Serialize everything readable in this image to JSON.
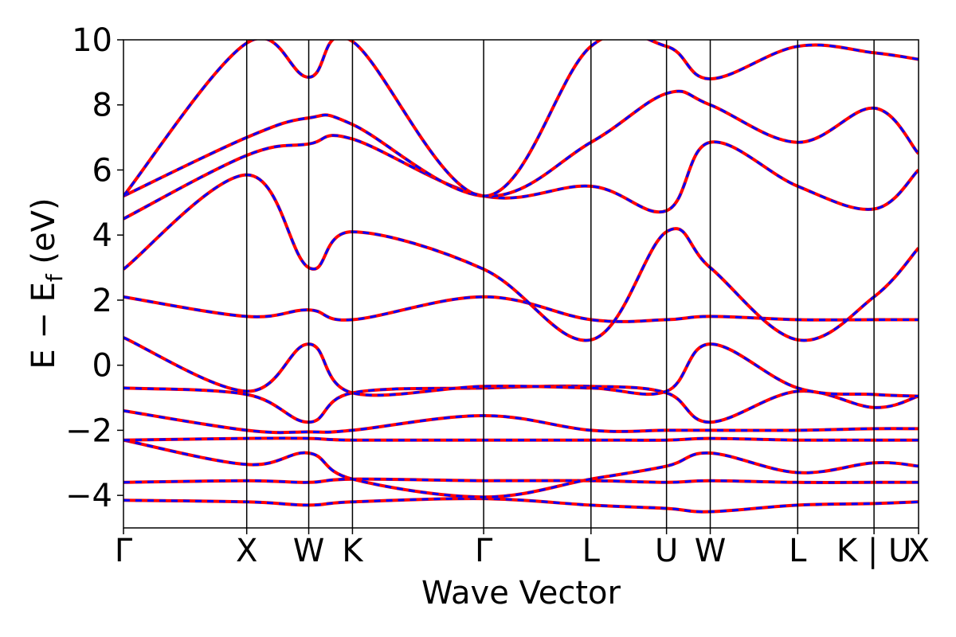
{
  "chart_data": {
    "type": "line",
    "title": "",
    "xlabel": "Wave Vector",
    "ylabel": {
      "main": "E − E",
      "subscript": "f",
      "unit": " (eV)"
    },
    "ylim": [
      -5,
      10
    ],
    "yticks": [
      10,
      8,
      6,
      4,
      2,
      0,
      -2,
      -4
    ],
    "ytick_labels": [
      "10",
      "8",
      "6",
      "4",
      "2",
      "0",
      "−2",
      "−4"
    ],
    "xlim": [
      0,
      1
    ],
    "kpoints": [
      {
        "label": "Γ",
        "pos": 0.0
      },
      {
        "label": "X",
        "pos": 0.155
      },
      {
        "label": "W",
        "pos": 0.233
      },
      {
        "label": "K",
        "pos": 0.288
      },
      {
        "label": "Γ",
        "pos": 0.453
      },
      {
        "label": "L",
        "pos": 0.588
      },
      {
        "label": "U",
        "pos": 0.683
      },
      {
        "label": "W",
        "pos": 0.738
      },
      {
        "label": "L",
        "pos": 0.848
      },
      {
        "label": "K | U",
        "pos": 0.944
      },
      {
        "label": "X",
        "pos": 1.0
      }
    ],
    "series_styles": [
      {
        "name": "band-set-red",
        "color": "#ff0000",
        "style": "solid"
      },
      {
        "name": "band-set-blue",
        "color": "#0000ff",
        "style": "dashed"
      }
    ],
    "bands": [
      {
        "values": [
          -4.15,
          -4.2,
          -4.3,
          -4.2,
          -4.1,
          -4.3,
          -4.4,
          -4.5,
          -4.3,
          -4.25,
          -4.2
        ]
      },
      {
        "values": [
          -3.6,
          -3.55,
          -3.6,
          -3.5,
          -3.55,
          -3.55,
          -3.6,
          -3.55,
          -3.6,
          -3.6,
          -3.6
        ]
      },
      {
        "values": [
          -2.3,
          -3.05,
          -2.7,
          -3.5,
          -4.05,
          -3.5,
          -3.1,
          -2.7,
          -3.3,
          -3.0,
          -3.1
        ]
      },
      {
        "values": [
          -2.3,
          -2.25,
          -2.25,
          -2.3,
          -2.3,
          -2.3,
          -2.3,
          -2.25,
          -2.3,
          -2.3,
          -2.3
        ]
      },
      {
        "values": [
          -1.4,
          -2.0,
          -2.05,
          -2.0,
          -1.55,
          -2.0,
          -2.0,
          -2.0,
          -2.0,
          -1.95,
          -1.95
        ]
      },
      {
        "values": [
          -0.7,
          -0.9,
          -1.75,
          -0.85,
          -0.7,
          -0.65,
          -0.85,
          -1.75,
          -0.8,
          -1.3,
          -0.95
        ]
      },
      {
        "values": [
          0.85,
          -0.8,
          0.65,
          -0.85,
          -0.65,
          -0.7,
          -0.8,
          0.65,
          -0.7,
          -0.9,
          -0.95
        ]
      },
      {
        "values": [
          2.1,
          1.5,
          1.7,
          1.4,
          2.1,
          1.4,
          1.4,
          1.5,
          1.4,
          1.4,
          1.4
        ]
      },
      {
        "values": [
          2.95,
          5.85,
          3.0,
          4.1,
          2.95,
          0.78,
          4.1,
          3.0,
          0.78,
          2.1,
          3.6
        ]
      },
      {
        "values": [
          4.5,
          6.45,
          6.8,
          6.95,
          5.2,
          5.5,
          4.75,
          6.85,
          5.5,
          4.8,
          6.0
        ]
      },
      {
        "values": [
          5.2,
          7.0,
          7.6,
          7.4,
          5.2,
          6.85,
          8.35,
          8.0,
          6.85,
          7.9,
          6.5
        ]
      },
      {
        "values": [
          5.2,
          9.9,
          8.85,
          9.95,
          5.2,
          9.8,
          9.8,
          8.8,
          9.8,
          9.6,
          9.4
        ]
      }
    ]
  }
}
